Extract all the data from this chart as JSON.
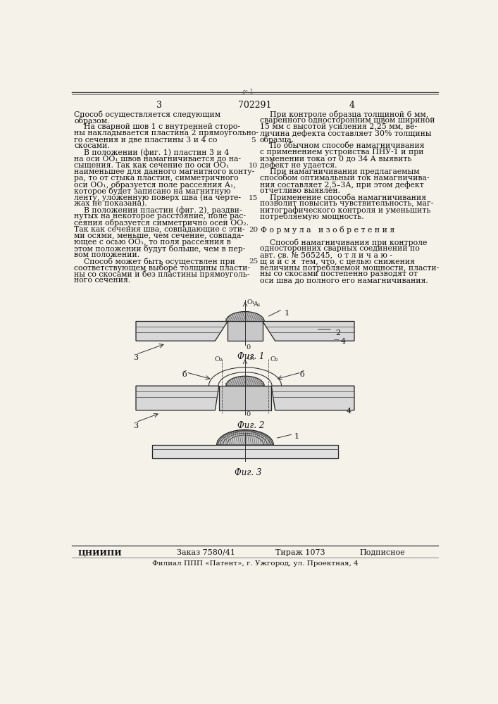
{
  "background_color": "#f5f2ea",
  "text_color": "#111111",
  "page_number_left": "3",
  "patent_number": "702291",
  "page_number_right": "4",
  "left_column_text": [
    "Способ осуществляется следующим",
    "образом.",
    "    На сварной шов 1 с внутренней сторо-",
    "ны накладывается пластина 2 прямоугольно-",
    "го сечения и две пластины 3 и 4 со",
    "скосами.",
    "    В положении (фиг. 1) пластин 3 и 4",
    "на оси OO₁ швов намагничивается до на-",
    "сыщения. Так как сечение по оси OO₁",
    "наименьшее для данного магнитного конту-",
    "ра, то от стыка пластин, симметричного",
    "оси OO₁, образуется поле рассеяния A₁,",
    "которое будет записано на магнитную",
    "ленту, уложенную поверх шва (на черте-",
    "жах не показана).",
    "    В положении пластин (фиг. 2), раздви-",
    "нутых на некоторое расстояние, поле рас-",
    "сеяния образуется симметрично осей OO₂.",
    "Так как сечения шва, совпадающие с эти-",
    "ми осями, меньше, чем сечение, совпада-",
    "ющее с осью OO₁, то поля рассеяния в",
    "этом положении будут больше, чем в пер-",
    "вом положении.",
    "    Способ может быть осуществлен при",
    "соответствующем выборе толщины пласти-",
    "ны со скосами и без пластины прямоуголь-",
    "ного сечения."
  ],
  "right_column_text": [
    "    При контроле образца толщиной 6 мм,",
    "сваренного односторонним швом шириной",
    "15 мм с высотой усиления 2,25 мм, ве-",
    "личина дефекта составляет 30% толщины",
    "образца.",
    "    По обычном способе намагничивания",
    "с применением устройства ПНУ-1 и при",
    "изменении тока от 0 до 34 А выявить",
    "дефект не удается.",
    "    При намагничивании предлагаемым",
    "способом оптимальный ток намагничива-",
    "ния составляет 2,5–3А, при этом дефект",
    "отчетливо выявлен.",
    "    Применение способа намагничивания",
    "позволит повысить чувствительность, маг-",
    "нитографического контроля и уменьшить",
    "потребляемую мощность.",
    "",
    "Ф о р м у л а   и з о б р е т е н и я",
    "",
    "    Способ намагничивания при контроле",
    "односторонних сварных соединений по",
    "авт. св. № 565245,  о т л и ч а ю -",
    "щ и й с я  тем, что, с целью снижения",
    "величины потребляемой мощности, пласти-",
    "ны со скосами постепенно разводят от",
    "оси шва до полного его намагничивания."
  ],
  "line_numbers": [
    "5",
    "10",
    "15",
    "20",
    "25"
  ],
  "line_number_row_indices": [
    4,
    8,
    13,
    18,
    23
  ],
  "footer_org": "ЦНИИПИ",
  "footer_order": "Заказ 7580/41",
  "footer_print": "Тираж 1073",
  "footer_sign": "Подписное",
  "footer_branch": "Филиал ППП «Патент», г. Ужгород, ул. Проектная, 4"
}
